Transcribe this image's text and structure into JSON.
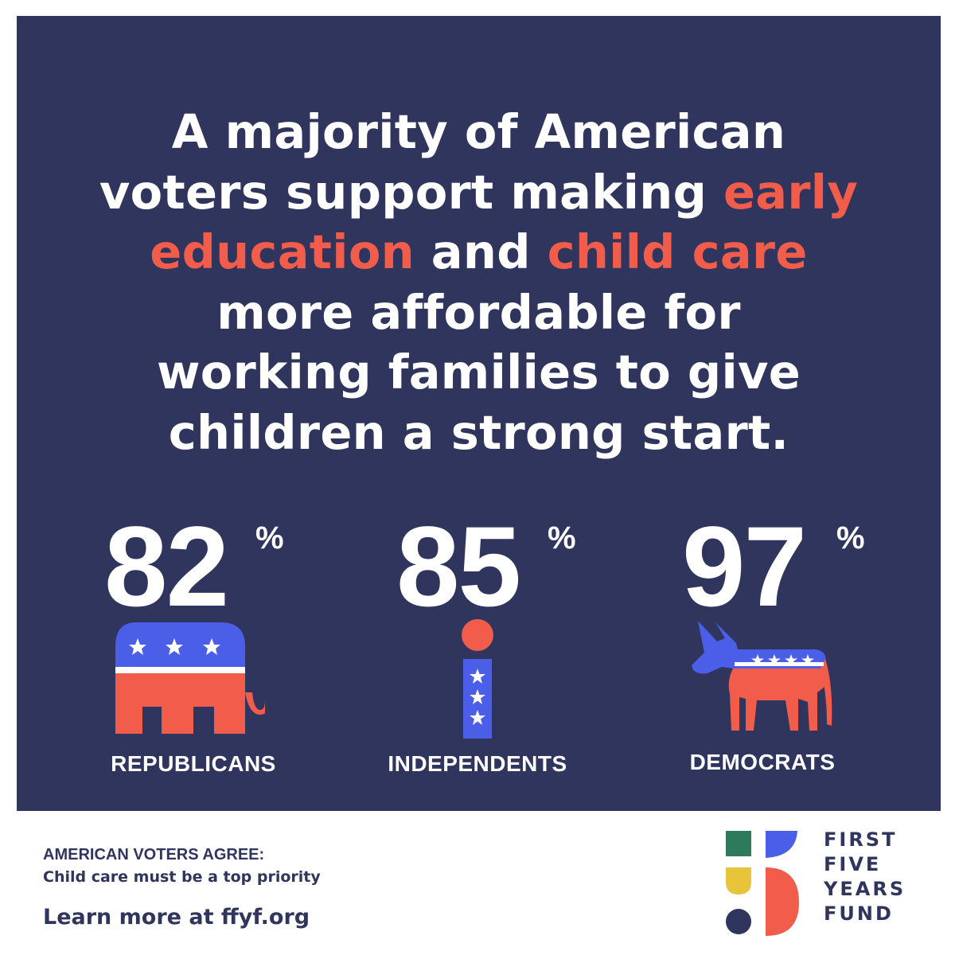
{
  "headline": {
    "line1": "A majority of American",
    "line2_text": "voters support making ",
    "line2_accent": "early",
    "line3_accent1": "education",
    "line3_text": " and ",
    "line3_accent2": "child care",
    "line4": "more affordable for",
    "line5": "working families to give",
    "line6": "children a strong start."
  },
  "stats": [
    {
      "value": "82",
      "unit": "%",
      "label": "REPUBLICANS",
      "icon": "elephant-icon"
    },
    {
      "value": "85",
      "unit": "%",
      "label": "INDEPENDENTS",
      "icon": "independent-i-icon"
    },
    {
      "value": "97",
      "unit": "%",
      "label": "DEMOCRATS",
      "icon": "donkey-icon"
    }
  ],
  "footer": {
    "agree_title": "AMERICAN VOTERS AGREE:",
    "agree_sub": "Child care must be a top priority",
    "learn_more": "Learn more at ffyf.org"
  },
  "logo": {
    "lines": [
      "FIRST",
      "FIVE",
      "YEARS",
      "FUND"
    ]
  },
  "colors": {
    "navy": "#30355e",
    "accent_red": "#f25c4a",
    "party_blue": "#4a5ee8",
    "logo_green": "#2f7a5c",
    "logo_blue": "#4a5ee8",
    "logo_yellow": "#e8c43a",
    "logo_red": "#f25c4a"
  }
}
